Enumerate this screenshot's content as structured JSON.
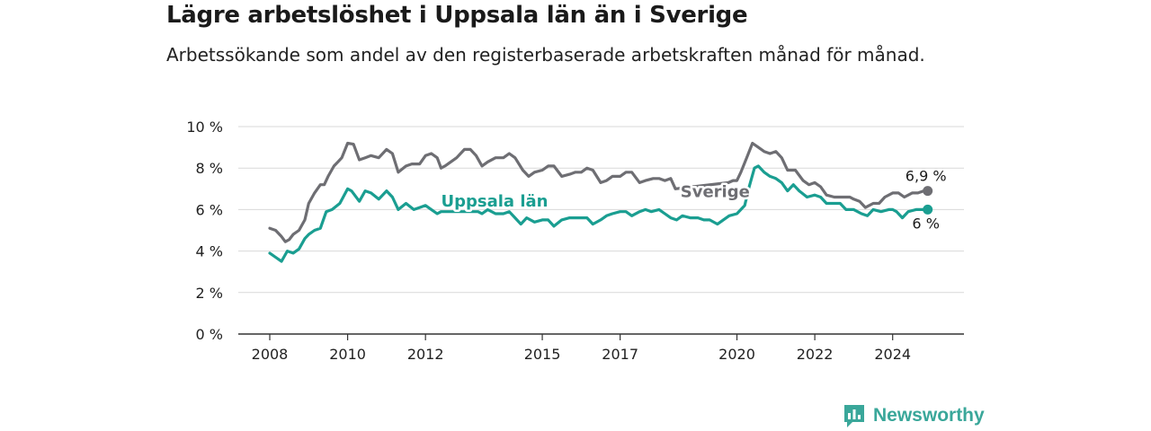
{
  "title": "Lägre arbetslöshet i Uppsala län än i Sverige",
  "subtitle": "Arbetssökande som andel av den registerbaserade arbetskraften månad för månad.",
  "brand": {
    "name": "Newsworthy",
    "icon": "newsworthy-logo-icon",
    "color": "#3aa79a"
  },
  "chart_data": {
    "type": "line",
    "ylim": [
      0,
      10
    ],
    "xlim": [
      2008,
      2025
    ],
    "y_ticks": [
      0,
      2,
      4,
      6,
      8,
      10
    ],
    "y_tick_labels": [
      "0 %",
      "2 %",
      "4 %",
      "6 %",
      "8 %",
      "10 %"
    ],
    "x_ticks": [
      2008,
      2010,
      2012,
      2015,
      2017,
      2020,
      2022,
      2024
    ],
    "x_tick_labels": [
      "2008",
      "2010",
      "2012",
      "2015",
      "2017",
      "2020",
      "2022",
      "2024"
    ],
    "grid": true,
    "series": [
      {
        "name": "Sverige",
        "color": "#6e6e73",
        "end_label": "6,9 %",
        "points": [
          [
            2008.0,
            5.1
          ],
          [
            2008.15,
            5.0
          ],
          [
            2008.3,
            4.7
          ],
          [
            2008.4,
            4.45
          ],
          [
            2008.5,
            4.55
          ],
          [
            2008.6,
            4.8
          ],
          [
            2008.75,
            5.0
          ],
          [
            2008.9,
            5.5
          ],
          [
            2009.0,
            6.3
          ],
          [
            2009.15,
            6.8
          ],
          [
            2009.3,
            7.2
          ],
          [
            2009.4,
            7.2
          ],
          [
            2009.5,
            7.6
          ],
          [
            2009.65,
            8.1
          ],
          [
            2009.75,
            8.3
          ],
          [
            2009.85,
            8.5
          ],
          [
            2010.0,
            9.2
          ],
          [
            2010.15,
            9.15
          ],
          [
            2010.3,
            8.4
          ],
          [
            2010.45,
            8.5
          ],
          [
            2010.6,
            8.6
          ],
          [
            2010.8,
            8.5
          ],
          [
            2011.0,
            8.9
          ],
          [
            2011.15,
            8.7
          ],
          [
            2011.3,
            7.8
          ],
          [
            2011.5,
            8.1
          ],
          [
            2011.65,
            8.2
          ],
          [
            2011.85,
            8.2
          ],
          [
            2012.0,
            8.6
          ],
          [
            2012.15,
            8.7
          ],
          [
            2012.3,
            8.5
          ],
          [
            2012.4,
            8.0
          ],
          [
            2012.5,
            8.1
          ],
          [
            2012.65,
            8.3
          ],
          [
            2012.8,
            8.5
          ],
          [
            2013.0,
            8.9
          ],
          [
            2013.15,
            8.9
          ],
          [
            2013.3,
            8.6
          ],
          [
            2013.45,
            8.1
          ],
          [
            2013.6,
            8.3
          ],
          [
            2013.8,
            8.5
          ],
          [
            2014.0,
            8.5
          ],
          [
            2014.15,
            8.7
          ],
          [
            2014.3,
            8.5
          ],
          [
            2014.5,
            7.9
          ],
          [
            2014.65,
            7.6
          ],
          [
            2014.8,
            7.8
          ],
          [
            2015.0,
            7.9
          ],
          [
            2015.15,
            8.1
          ],
          [
            2015.3,
            8.1
          ],
          [
            2015.5,
            7.6
          ],
          [
            2015.7,
            7.7
          ],
          [
            2015.85,
            7.8
          ],
          [
            2016.0,
            7.8
          ],
          [
            2016.15,
            8.0
          ],
          [
            2016.3,
            7.9
          ],
          [
            2016.5,
            7.3
          ],
          [
            2016.65,
            7.4
          ],
          [
            2016.8,
            7.6
          ],
          [
            2017.0,
            7.6
          ],
          [
            2017.15,
            7.8
          ],
          [
            2017.3,
            7.8
          ],
          [
            2017.5,
            7.3
          ],
          [
            2017.65,
            7.4
          ],
          [
            2017.85,
            7.5
          ],
          [
            2018.0,
            7.5
          ],
          [
            2018.15,
            7.4
          ],
          [
            2018.3,
            7.5
          ],
          [
            2018.42,
            7.0
          ],
          [
            2019.78,
            7.3
          ],
          [
            2019.9,
            7.4
          ],
          [
            2020.0,
            7.4
          ],
          [
            2020.1,
            7.8
          ],
          [
            2020.25,
            8.5
          ],
          [
            2020.4,
            9.2
          ],
          [
            2020.55,
            9.0
          ],
          [
            2020.7,
            8.8
          ],
          [
            2020.85,
            8.7
          ],
          [
            2021.0,
            8.8
          ],
          [
            2021.15,
            8.5
          ],
          [
            2021.3,
            7.9
          ],
          [
            2021.5,
            7.9
          ],
          [
            2021.7,
            7.4
          ],
          [
            2021.85,
            7.2
          ],
          [
            2022.0,
            7.3
          ],
          [
            2022.15,
            7.1
          ],
          [
            2022.3,
            6.7
          ],
          [
            2022.5,
            6.6
          ],
          [
            2022.7,
            6.6
          ],
          [
            2022.9,
            6.6
          ],
          [
            2023.0,
            6.5
          ],
          [
            2023.15,
            6.4
          ],
          [
            2023.3,
            6.1
          ],
          [
            2023.5,
            6.3
          ],
          [
            2023.65,
            6.3
          ],
          [
            2023.8,
            6.6
          ],
          [
            2024.0,
            6.8
          ],
          [
            2024.15,
            6.8
          ],
          [
            2024.3,
            6.6
          ],
          [
            2024.5,
            6.8
          ],
          [
            2024.65,
            6.8
          ],
          [
            2024.8,
            6.9
          ],
          [
            2024.9,
            6.9
          ]
        ]
      },
      {
        "name": "Uppsala län",
        "color": "#1a9e91",
        "end_label": "6 %",
        "points": [
          [
            2008.0,
            3.9
          ],
          [
            2008.15,
            3.7
          ],
          [
            2008.3,
            3.5
          ],
          [
            2008.45,
            4.0
          ],
          [
            2008.6,
            3.9
          ],
          [
            2008.75,
            4.1
          ],
          [
            2008.9,
            4.6
          ],
          [
            2009.0,
            4.8
          ],
          [
            2009.15,
            5.0
          ],
          [
            2009.3,
            5.1
          ],
          [
            2009.45,
            5.9
          ],
          [
            2009.6,
            6.0
          ],
          [
            2009.8,
            6.3
          ],
          [
            2010.0,
            7.0
          ],
          [
            2010.1,
            6.9
          ],
          [
            2010.3,
            6.4
          ],
          [
            2010.45,
            6.9
          ],
          [
            2010.6,
            6.8
          ],
          [
            2010.8,
            6.5
          ],
          [
            2011.0,
            6.9
          ],
          [
            2011.15,
            6.6
          ],
          [
            2011.3,
            6.0
          ],
          [
            2011.5,
            6.3
          ],
          [
            2011.7,
            6.0
          ],
          [
            2011.85,
            6.1
          ],
          [
            2012.0,
            6.2
          ],
          [
            2012.15,
            6.0
          ],
          [
            2012.3,
            5.8
          ],
          [
            2012.4,
            5.9
          ],
          [
            2013.35,
            5.9
          ],
          [
            2013.45,
            5.8
          ],
          [
            2013.6,
            6.0
          ],
          [
            2013.8,
            5.8
          ],
          [
            2014.0,
            5.8
          ],
          [
            2014.15,
            5.9
          ],
          [
            2014.3,
            5.6
          ],
          [
            2014.45,
            5.3
          ],
          [
            2014.6,
            5.6
          ],
          [
            2014.8,
            5.4
          ],
          [
            2015.0,
            5.5
          ],
          [
            2015.15,
            5.5
          ],
          [
            2015.3,
            5.2
          ],
          [
            2015.5,
            5.5
          ],
          [
            2015.7,
            5.6
          ],
          [
            2015.85,
            5.6
          ],
          [
            2016.0,
            5.6
          ],
          [
            2016.15,
            5.6
          ],
          [
            2016.3,
            5.3
          ],
          [
            2016.5,
            5.5
          ],
          [
            2016.65,
            5.7
          ],
          [
            2016.8,
            5.8
          ],
          [
            2017.0,
            5.9
          ],
          [
            2017.15,
            5.9
          ],
          [
            2017.3,
            5.7
          ],
          [
            2017.5,
            5.9
          ],
          [
            2017.65,
            6.0
          ],
          [
            2017.8,
            5.9
          ],
          [
            2018.0,
            6.0
          ],
          [
            2018.15,
            5.8
          ],
          [
            2018.3,
            5.6
          ],
          [
            2018.45,
            5.5
          ],
          [
            2018.6,
            5.7
          ],
          [
            2018.8,
            5.6
          ],
          [
            2019.0,
            5.6
          ],
          [
            2019.15,
            5.5
          ],
          [
            2019.3,
            5.5
          ],
          [
            2019.5,
            5.3
          ],
          [
            2019.65,
            5.5
          ],
          [
            2019.8,
            5.7
          ],
          [
            2020.0,
            5.8
          ],
          [
            2020.1,
            6.0
          ],
          [
            2020.2,
            6.2
          ],
          [
            2020.3,
            7.0
          ],
          [
            2020.45,
            8.0
          ],
          [
            2020.55,
            8.1
          ],
          [
            2020.7,
            7.8
          ],
          [
            2020.85,
            7.6
          ],
          [
            2021.0,
            7.5
          ],
          [
            2021.15,
            7.3
          ],
          [
            2021.3,
            6.9
          ],
          [
            2021.45,
            7.2
          ],
          [
            2021.6,
            6.9
          ],
          [
            2021.8,
            6.6
          ],
          [
            2022.0,
            6.7
          ],
          [
            2022.15,
            6.6
          ],
          [
            2022.3,
            6.3
          ],
          [
            2022.5,
            6.3
          ],
          [
            2022.65,
            6.3
          ],
          [
            2022.8,
            6.0
          ],
          [
            2023.0,
            6.0
          ],
          [
            2023.2,
            5.8
          ],
          [
            2023.35,
            5.7
          ],
          [
            2023.5,
            6.0
          ],
          [
            2023.7,
            5.9
          ],
          [
            2023.9,
            6.0
          ],
          [
            2024.0,
            6.0
          ],
          [
            2024.1,
            5.9
          ],
          [
            2024.25,
            5.6
          ],
          [
            2024.4,
            5.9
          ],
          [
            2024.6,
            6.0
          ],
          [
            2024.75,
            6.0
          ],
          [
            2024.9,
            6.0
          ]
        ]
      }
    ],
    "labels": [
      {
        "series": "Sverige",
        "text": "Sverige",
        "x": 2018.55,
        "y": 6.6
      },
      {
        "series": "Uppsala län",
        "text": "Uppsala län",
        "x": 2012.4,
        "y": 6.15
      }
    ]
  }
}
